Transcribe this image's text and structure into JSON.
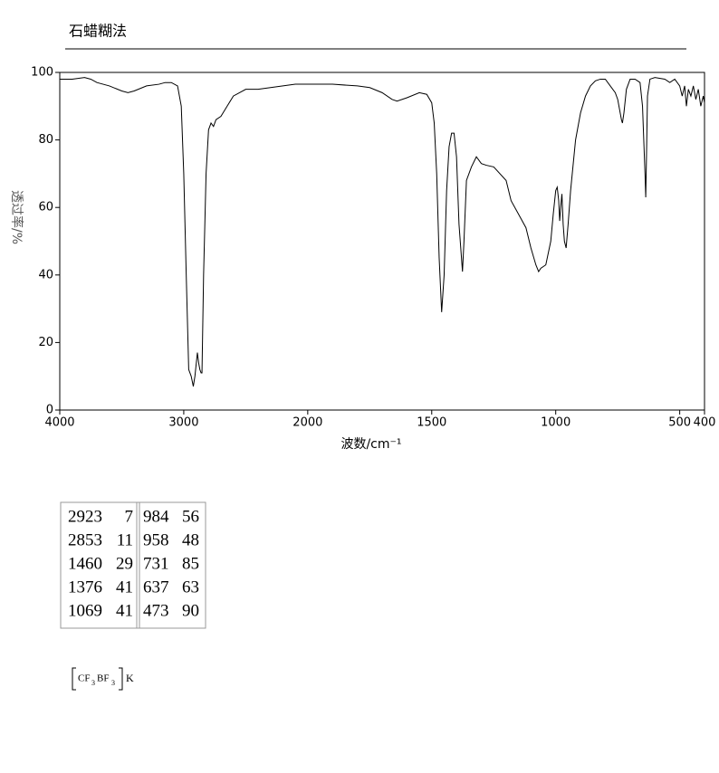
{
  "chart_data": {
    "type": "line",
    "title": "石蜡糊法",
    "xlabel": "波数/cm⁻¹",
    "ylabel": "透过率/%",
    "x": [
      4000,
      3900,
      3800,
      3750,
      3700,
      3600,
      3500,
      3450,
      3400,
      3300,
      3200,
      3150,
      3100,
      3050,
      3020,
      3000,
      2980,
      2960,
      2940,
      2923,
      2910,
      2890,
      2880,
      2870,
      2860,
      2853,
      2840,
      2820,
      2800,
      2780,
      2760,
      2740,
      2700,
      2650,
      2600,
      2500,
      2400,
      2300,
      2200,
      2100,
      2000,
      1950,
      1900,
      1800,
      1750,
      1700,
      1660,
      1640,
      1600,
      1550,
      1520,
      1500,
      1490,
      1480,
      1470,
      1460,
      1450,
      1440,
      1430,
      1420,
      1410,
      1400,
      1390,
      1376,
      1370,
      1360,
      1340,
      1320,
      1300,
      1280,
      1250,
      1200,
      1180,
      1150,
      1120,
      1100,
      1080,
      1069,
      1060,
      1040,
      1020,
      1010,
      1000,
      994,
      988,
      984,
      980,
      975,
      970,
      965,
      958,
      950,
      940,
      920,
      900,
      880,
      860,
      840,
      820,
      800,
      780,
      760,
      750,
      740,
      735,
      731,
      725,
      715,
      700,
      680,
      660,
      650,
      645,
      640,
      637,
      634,
      630,
      620,
      600,
      560,
      540,
      520,
      500,
      490,
      480,
      473,
      465,
      455,
      445,
      435,
      425,
      415,
      405,
      400
    ],
    "values": [
      98,
      98,
      98.5,
      98,
      97,
      96,
      94.5,
      94,
      94.5,
      96,
      96.5,
      97,
      97,
      96,
      90,
      70,
      40,
      12,
      10,
      7,
      10,
      17,
      14,
      12,
      11,
      11,
      40,
      70,
      83,
      85,
      84,
      86,
      87,
      90,
      93,
      95,
      95,
      95.5,
      96,
      96.5,
      96.5,
      96.5,
      96.5,
      96,
      95.5,
      94,
      92,
      91.5,
      92.5,
      94,
      93.5,
      91,
      85,
      70,
      45,
      29,
      40,
      65,
      78,
      82,
      82,
      75,
      55,
      41,
      50,
      68,
      72,
      75,
      73,
      72.5,
      72,
      68,
      62,
      58,
      54,
      48,
      43,
      41,
      42,
      43,
      50,
      58,
      65,
      66,
      62,
      56,
      60,
      64,
      55,
      50,
      48,
      55,
      65,
      80,
      88,
      93,
      96,
      97.5,
      98,
      98,
      96,
      94,
      92,
      88,
      86,
      85,
      88,
      95,
      98,
      98,
      97,
      90,
      80,
      70,
      63,
      75,
      93,
      98,
      98.5,
      98,
      97,
      98,
      96,
      93,
      96,
      90,
      95,
      93,
      96,
      92,
      95,
      90,
      93,
      91
    ],
    "color": "#000000",
    "xlim": [
      4000,
      400
    ],
    "xticks": [
      4000,
      3000,
      2000,
      1500,
      1000,
      500,
      400
    ],
    "x_scale_break": 2000,
    "ylim": [
      0,
      100
    ],
    "yticks": [
      0,
      20,
      40,
      60,
      80,
      100
    ],
    "grid": false
  },
  "peak_table": {
    "rows": [
      [
        2923,
        7,
        984,
        56
      ],
      [
        2853,
        11,
        958,
        48
      ],
      [
        1460,
        29,
        731,
        85
      ],
      [
        1376,
        41,
        637,
        63
      ],
      [
        1069,
        41,
        473,
        90
      ]
    ]
  },
  "formula": {
    "parts": [
      "CF",
      "3",
      "BF",
      "3",
      "K"
    ]
  }
}
